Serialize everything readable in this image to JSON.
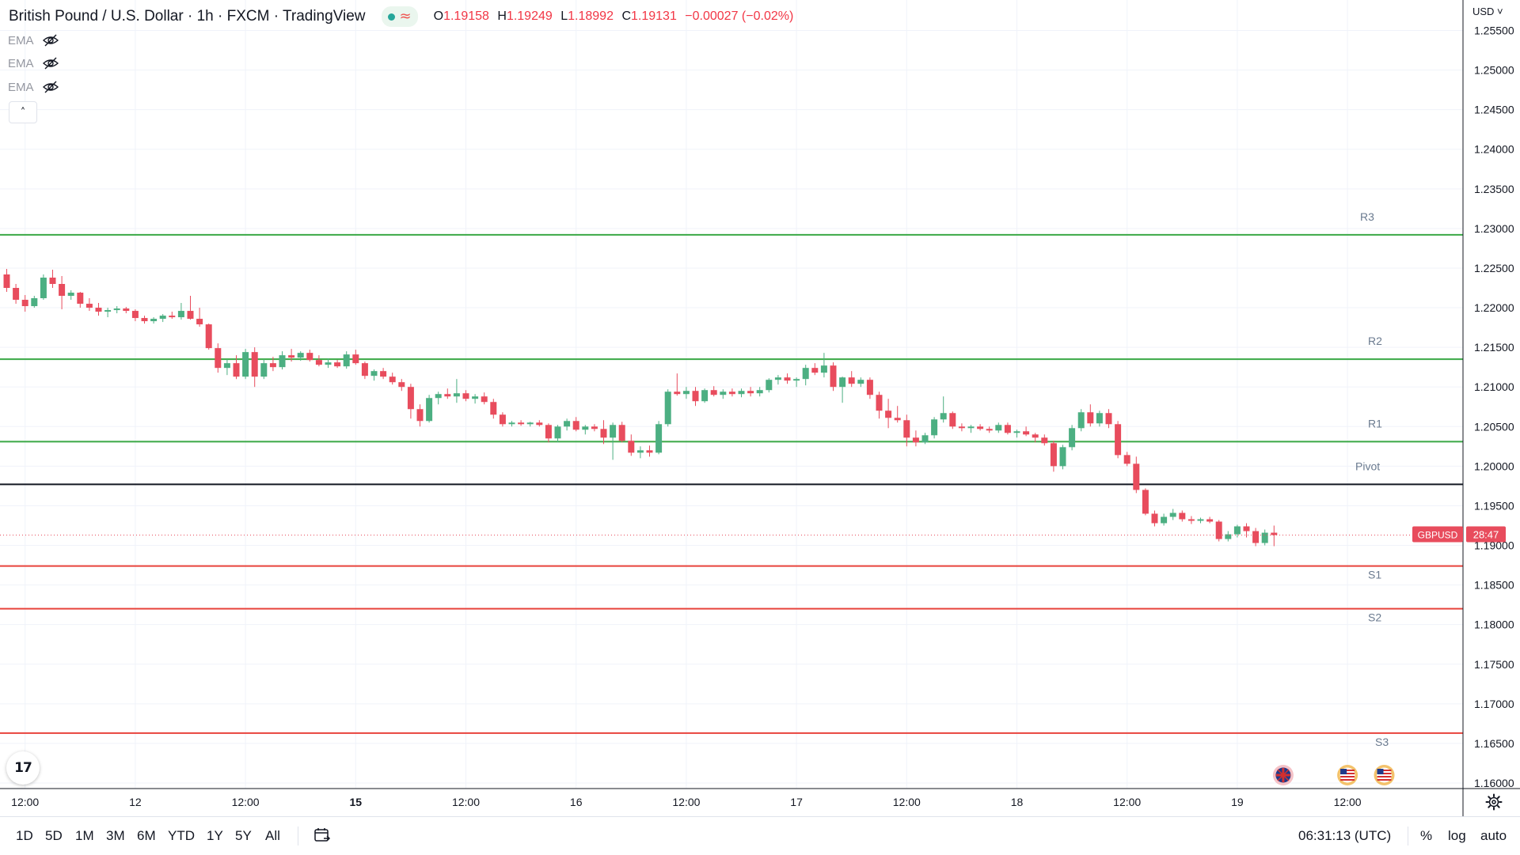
{
  "header": {
    "title": "British Pound / U.S. Dollar · 1h · FXCM · TradingView",
    "live_symbol": "≈",
    "ohlc": {
      "open_label": "O",
      "open": "1.19158",
      "high_label": "H",
      "high": "1.19249",
      "low_label": "L",
      "low": "1.18992",
      "close_label": "C",
      "close": "1.19131",
      "change": "−0.00027 (−0.02%)"
    }
  },
  "indicators": [
    {
      "label": "EMA",
      "icon": "eye-off-icon"
    },
    {
      "label": "EMA",
      "icon": "eye-off-icon"
    },
    {
      "label": "EMA",
      "icon": "eye-off-icon"
    }
  ],
  "collapse_symbol": "˄",
  "currency_selector": "USD ˅",
  "logo_text": "17",
  "colors": {
    "up": "#4caf82",
    "down": "#e84c5d",
    "resistance": "#3aa845",
    "support": "#e8433c",
    "pivot": "#131722",
    "label": "#6a7a8f",
    "grid": "#f0f3fa"
  },
  "chart_data": {
    "type": "candlestick",
    "symbol": "GBPUSD",
    "interval": "1h",
    "ylim": [
      1.1595,
      1.2561
    ],
    "y_ticks": [
      "1.25500",
      "1.25000",
      "1.24500",
      "1.24000",
      "1.23500",
      "1.23000",
      "1.22500",
      "1.22000",
      "1.21500",
      "1.21000",
      "1.20500",
      "1.20000",
      "1.19500",
      "1.19000",
      "1.18500",
      "1.18000",
      "1.17500",
      "1.17000",
      "1.16500",
      "1.16000"
    ],
    "x_ticks": [
      {
        "label": "12:00",
        "bold": false,
        "index": 2
      },
      {
        "label": "12",
        "bold": false,
        "index": 14
      },
      {
        "label": "12:00",
        "bold": false,
        "index": 26
      },
      {
        "label": "15",
        "bold": true,
        "index": 38
      },
      {
        "label": "12:00",
        "bold": false,
        "index": 50
      },
      {
        "label": "16",
        "bold": false,
        "index": 62
      },
      {
        "label": "12:00",
        "bold": false,
        "index": 74
      },
      {
        "label": "17",
        "bold": false,
        "index": 86
      },
      {
        "label": "12:00",
        "bold": false,
        "index": 98
      },
      {
        "label": "18",
        "bold": false,
        "index": 110
      },
      {
        "label": "12:00",
        "bold": false,
        "index": 122
      },
      {
        "label": "19",
        "bold": false,
        "index": 134
      },
      {
        "label": "12:00",
        "bold": false,
        "index": 146
      }
    ],
    "levels": [
      {
        "name": "R3",
        "value": 1.2292,
        "kind": "resistance"
      },
      {
        "name": "R2",
        "value": 1.2135,
        "kind": "resistance"
      },
      {
        "name": "R1",
        "value": 1.2031,
        "kind": "resistance"
      },
      {
        "name": "Pivot",
        "value": 1.1977,
        "kind": "pivot"
      },
      {
        "name": "S1",
        "value": 1.1874,
        "kind": "support"
      },
      {
        "name": "S2",
        "value": 1.182,
        "kind": "support"
      },
      {
        "name": "S3",
        "value": 1.1663,
        "kind": "support"
      }
    ],
    "last_price": {
      "symbol": "GBPUSD",
      "countdown": "28:47",
      "value": 1.1913
    },
    "ohlc": [
      [
        1.2242,
        1.2249,
        1.222,
        1.2225
      ],
      [
        1.2225,
        1.223,
        1.2205,
        1.221
      ],
      [
        1.221,
        1.2216,
        1.2195,
        1.2202
      ],
      [
        1.2202,
        1.2215,
        1.22,
        1.2212
      ],
      [
        1.2212,
        1.2242,
        1.221,
        1.2238
      ],
      [
        1.2238,
        1.2248,
        1.2225,
        1.223
      ],
      [
        1.223,
        1.224,
        1.2198,
        1.2215
      ],
      [
        1.2215,
        1.2222,
        1.221,
        1.2219
      ],
      [
        1.2219,
        1.222,
        1.22,
        1.2205
      ],
      [
        1.2205,
        1.2212,
        1.2196,
        1.22
      ],
      [
        1.22,
        1.2206,
        1.219,
        1.2195
      ],
      [
        1.2195,
        1.22,
        1.2188,
        1.2197
      ],
      [
        1.2197,
        1.2202,
        1.2193,
        1.2199
      ],
      [
        1.2199,
        1.2201,
        1.2193,
        1.2196
      ],
      [
        1.2196,
        1.2198,
        1.2183,
        1.2187
      ],
      [
        1.2187,
        1.219,
        1.218,
        1.2183
      ],
      [
        1.2183,
        1.2188,
        1.218,
        1.2186
      ],
      [
        1.2186,
        1.2192,
        1.2182,
        1.219
      ],
      [
        1.219,
        1.2195,
        1.2186,
        1.2188
      ],
      [
        1.2188,
        1.2206,
        1.2185,
        1.2196
      ],
      [
        1.2196,
        1.2215,
        1.2185,
        1.2186
      ],
      [
        1.2186,
        1.22,
        1.2176,
        1.2179
      ],
      [
        1.2179,
        1.218,
        1.2147,
        1.2149
      ],
      [
        1.2149,
        1.2155,
        1.2118,
        1.2124
      ],
      [
        1.2124,
        1.2135,
        1.2115,
        1.213
      ],
      [
        1.213,
        1.214,
        1.211,
        1.2113
      ],
      [
        1.2113,
        1.2148,
        1.211,
        1.2144
      ],
      [
        1.2144,
        1.215,
        1.21,
        1.2113
      ],
      [
        1.2113,
        1.2135,
        1.211,
        1.213
      ],
      [
        1.213,
        1.2138,
        1.212,
        1.2125
      ],
      [
        1.2125,
        1.2145,
        1.2122,
        1.214
      ],
      [
        1.214,
        1.2148,
        1.2132,
        1.2137
      ],
      [
        1.2137,
        1.2145,
        1.2133,
        1.2143
      ],
      [
        1.2143,
        1.2147,
        1.2132,
        1.2134
      ],
      [
        1.2134,
        1.214,
        1.2126,
        1.2128
      ],
      [
        1.2128,
        1.2136,
        1.2124,
        1.2131
      ],
      [
        1.2131,
        1.2134,
        1.2124,
        1.2126
      ],
      [
        1.2126,
        1.2145,
        1.2123,
        1.2141
      ],
      [
        1.2141,
        1.2147,
        1.2128,
        1.213
      ],
      [
        1.213,
        1.2132,
        1.211,
        1.2114
      ],
      [
        1.2114,
        1.2122,
        1.2108,
        1.212
      ],
      [
        1.212,
        1.2124,
        1.211,
        1.2113
      ],
      [
        1.2113,
        1.2118,
        1.2103,
        1.2106
      ],
      [
        1.2106,
        1.211,
        1.2095,
        1.21
      ],
      [
        1.21,
        1.2104,
        1.206,
        1.2072
      ],
      [
        1.2072,
        1.2078,
        1.205,
        1.2057
      ],
      [
        1.2057,
        1.209,
        1.2055,
        1.2086
      ],
      [
        1.2086,
        1.2094,
        1.2078,
        1.2091
      ],
      [
        1.2091,
        1.2098,
        1.2085,
        1.2088
      ],
      [
        1.2088,
        1.211,
        1.208,
        1.2092
      ],
      [
        1.2092,
        1.2096,
        1.2082,
        1.2085
      ],
      [
        1.2085,
        1.2091,
        1.2079,
        1.2088
      ],
      [
        1.2088,
        1.2093,
        1.2078,
        1.2081
      ],
      [
        1.2081,
        1.2085,
        1.206,
        1.2065
      ],
      [
        1.2065,
        1.2068,
        1.205,
        1.2053
      ],
      [
        1.2053,
        1.2057,
        1.205,
        1.2055
      ],
      [
        1.2055,
        1.2058,
        1.2051,
        1.2053
      ],
      [
        1.2053,
        1.2056,
        1.205,
        1.2055
      ],
      [
        1.2055,
        1.2058,
        1.205,
        1.2052
      ],
      [
        1.2052,
        1.2054,
        1.203,
        1.2035
      ],
      [
        1.2035,
        1.2052,
        1.203,
        1.205
      ],
      [
        1.205,
        1.206,
        1.2045,
        1.2057
      ],
      [
        1.2057,
        1.2062,
        1.2044,
        1.2046
      ],
      [
        1.2046,
        1.2052,
        1.204,
        1.205
      ],
      [
        1.205,
        1.2053,
        1.2044,
        1.2047
      ],
      [
        1.2047,
        1.2058,
        1.2028,
        1.2036
      ],
      [
        1.2036,
        1.2055,
        1.2008,
        1.2052
      ],
      [
        1.2052,
        1.2056,
        1.203,
        1.2032
      ],
      [
        1.2032,
        1.204,
        1.2013,
        1.2017
      ],
      [
        1.2017,
        1.2025,
        1.201,
        1.202
      ],
      [
        1.202,
        1.2026,
        1.2012,
        1.2017
      ],
      [
        1.2017,
        1.2057,
        1.2015,
        1.2053
      ],
      [
        1.2053,
        1.2097,
        1.205,
        1.2094
      ],
      [
        1.2094,
        1.2117,
        1.2089,
        1.2091
      ],
      [
        1.2091,
        1.21,
        1.2085,
        1.2095
      ],
      [
        1.2095,
        1.21,
        1.2076,
        1.2082
      ],
      [
        1.2082,
        1.2098,
        1.208,
        1.2096
      ],
      [
        1.2096,
        1.2101,
        1.2088,
        1.209
      ],
      [
        1.209,
        1.2097,
        1.2085,
        1.2094
      ],
      [
        1.2094,
        1.2098,
        1.2088,
        1.2091
      ],
      [
        1.2091,
        1.2098,
        1.2087,
        1.2095
      ],
      [
        1.2095,
        1.21,
        1.2088,
        1.2092
      ],
      [
        1.2092,
        1.21,
        1.2088,
        1.2096
      ],
      [
        1.2096,
        1.2111,
        1.2093,
        1.2109
      ],
      [
        1.2109,
        1.2115,
        1.2103,
        1.2112
      ],
      [
        1.2112,
        1.2117,
        1.2104,
        1.2108
      ],
      [
        1.2108,
        1.2112,
        1.21,
        1.211
      ],
      [
        1.211,
        1.2128,
        1.2102,
        1.2124
      ],
      [
        1.2124,
        1.213,
        1.2115,
        1.2118
      ],
      [
        1.2118,
        1.2143,
        1.2112,
        1.2127
      ],
      [
        1.2127,
        1.2131,
        1.2095,
        1.21
      ],
      [
        1.21,
        1.2113,
        1.208,
        1.2112
      ],
      [
        1.2112,
        1.212,
        1.21,
        1.2104
      ],
      [
        1.2104,
        1.2112,
        1.21,
        1.2109
      ],
      [
        1.2109,
        1.2112,
        1.2085,
        1.209
      ],
      [
        1.209,
        1.2094,
        1.206,
        1.207
      ],
      [
        1.207,
        1.2085,
        1.2048,
        1.2061
      ],
      [
        1.2061,
        1.2076,
        1.2055,
        1.2058
      ],
      [
        1.2058,
        1.2065,
        1.2025,
        1.2036
      ],
      [
        1.2036,
        1.2045,
        1.2025,
        1.203
      ],
      [
        1.203,
        1.2042,
        1.2028,
        1.2039
      ],
      [
        1.2039,
        1.2062,
        1.2035,
        1.2059
      ],
      [
        1.2059,
        1.2088,
        1.2055,
        1.2067
      ],
      [
        1.2067,
        1.2069,
        1.2047,
        1.205
      ],
      [
        1.205,
        1.2054,
        1.2044,
        1.2048
      ],
      [
        1.2048,
        1.2052,
        1.2042,
        1.205
      ],
      [
        1.205,
        1.2053,
        1.2045,
        1.2047
      ],
      [
        1.2047,
        1.205,
        1.2042,
        1.2045
      ],
      [
        1.2045,
        1.2055,
        1.2042,
        1.2052
      ],
      [
        1.2052,
        1.2055,
        1.204,
        1.2042
      ],
      [
        1.2042,
        1.2046,
        1.2036,
        1.2044
      ],
      [
        1.2044,
        1.205,
        1.2038,
        1.204
      ],
      [
        1.204,
        1.2042,
        1.203,
        1.2036
      ],
      [
        1.2036,
        1.204,
        1.2026,
        1.2029
      ],
      [
        1.2029,
        1.2032,
        1.1993,
        1.2
      ],
      [
        1.2,
        1.2027,
        1.1996,
        1.2024
      ],
      [
        1.2024,
        1.2052,
        1.202,
        1.2048
      ],
      [
        1.2048,
        1.2072,
        1.2044,
        1.2068
      ],
      [
        1.2068,
        1.2078,
        1.205,
        1.2054
      ],
      [
        1.2054,
        1.207,
        1.205,
        1.2067
      ],
      [
        1.2067,
        1.2072,
        1.2048,
        1.2053
      ],
      [
        1.2053,
        1.2057,
        1.201,
        1.2014
      ],
      [
        1.2014,
        1.2018,
        1.2,
        1.2003
      ],
      [
        1.2003,
        1.2012,
        1.1966,
        1.197
      ],
      [
        1.197,
        1.1972,
        1.1938,
        1.194
      ],
      [
        1.194,
        1.1944,
        1.1924,
        1.1928
      ],
      [
        1.1928,
        1.194,
        1.1925,
        1.1936
      ],
      [
        1.1936,
        1.1946,
        1.1932,
        1.1941
      ],
      [
        1.1941,
        1.1944,
        1.193,
        1.1933
      ],
      [
        1.1933,
        1.1937,
        1.1927,
        1.1931
      ],
      [
        1.1931,
        1.1935,
        1.1928,
        1.1933
      ],
      [
        1.1933,
        1.1936,
        1.1928,
        1.193
      ],
      [
        1.193,
        1.1932,
        1.1905,
        1.1908
      ],
      [
        1.1908,
        1.1918,
        1.1905,
        1.1914
      ],
      [
        1.1914,
        1.1926,
        1.191,
        1.1924
      ],
      [
        1.1924,
        1.1928,
        1.191,
        1.1918
      ],
      [
        1.1918,
        1.1922,
        1.1899,
        1.1903
      ],
      [
        1.1903,
        1.192,
        1.19,
        1.1916
      ],
      [
        1.1916,
        1.1925,
        1.1899,
        1.1913
      ]
    ],
    "markers": [
      {
        "name": "uk-flag-icon",
        "index": 139
      },
      {
        "name": "us-flag-icon",
        "index": 146
      },
      {
        "name": "us-flag-icon",
        "index": 150
      }
    ]
  },
  "bottom_bar": {
    "ranges": [
      "1D",
      "5D",
      "1M",
      "3M",
      "6M",
      "YTD",
      "1Y",
      "5Y",
      "All"
    ],
    "clock": "06:31:13 (UTC)",
    "options": [
      "%",
      "log",
      "auto"
    ]
  }
}
